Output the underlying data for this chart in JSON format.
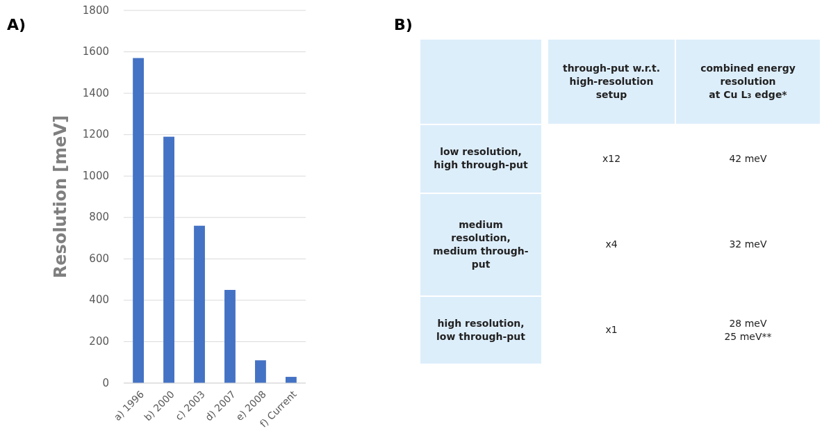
{
  "chart_data": [
    {
      "type": "bar",
      "title": "A)",
      "ylabel": "Resolution [meV]",
      "categories": [
        "a) 1996",
        "b) 2000",
        "c) 2003",
        "d) 2007",
        "e) 2008",
        "f) Current"
      ],
      "values": [
        1570,
        1190,
        760,
        450,
        110,
        30
      ],
      "color": "#4472c4",
      "ylim": [
        0,
        1800
      ],
      "yticks": [
        0,
        200,
        400,
        600,
        800,
        1000,
        1200,
        1400,
        1600,
        1800
      ],
      "grid": "y"
    },
    {
      "type": "other",
      "title": "B)",
      "categories": [
        "through-put w.r.t.\nhigh-resolution\nsetup",
        "combined energy\nresolution\nat Cu L₃ edge*"
      ],
      "y_categories": [
        "low resolution,\nhigh through-put",
        "medium\nresolution,\nmedium through-\nput",
        "high resolution,\nlow through-put"
      ],
      "annotations": [
        "x12",
        "42 meV",
        "x4",
        "32 meV",
        "x1",
        "28 meV\n25 meV**"
      ]
    }
  ]
}
